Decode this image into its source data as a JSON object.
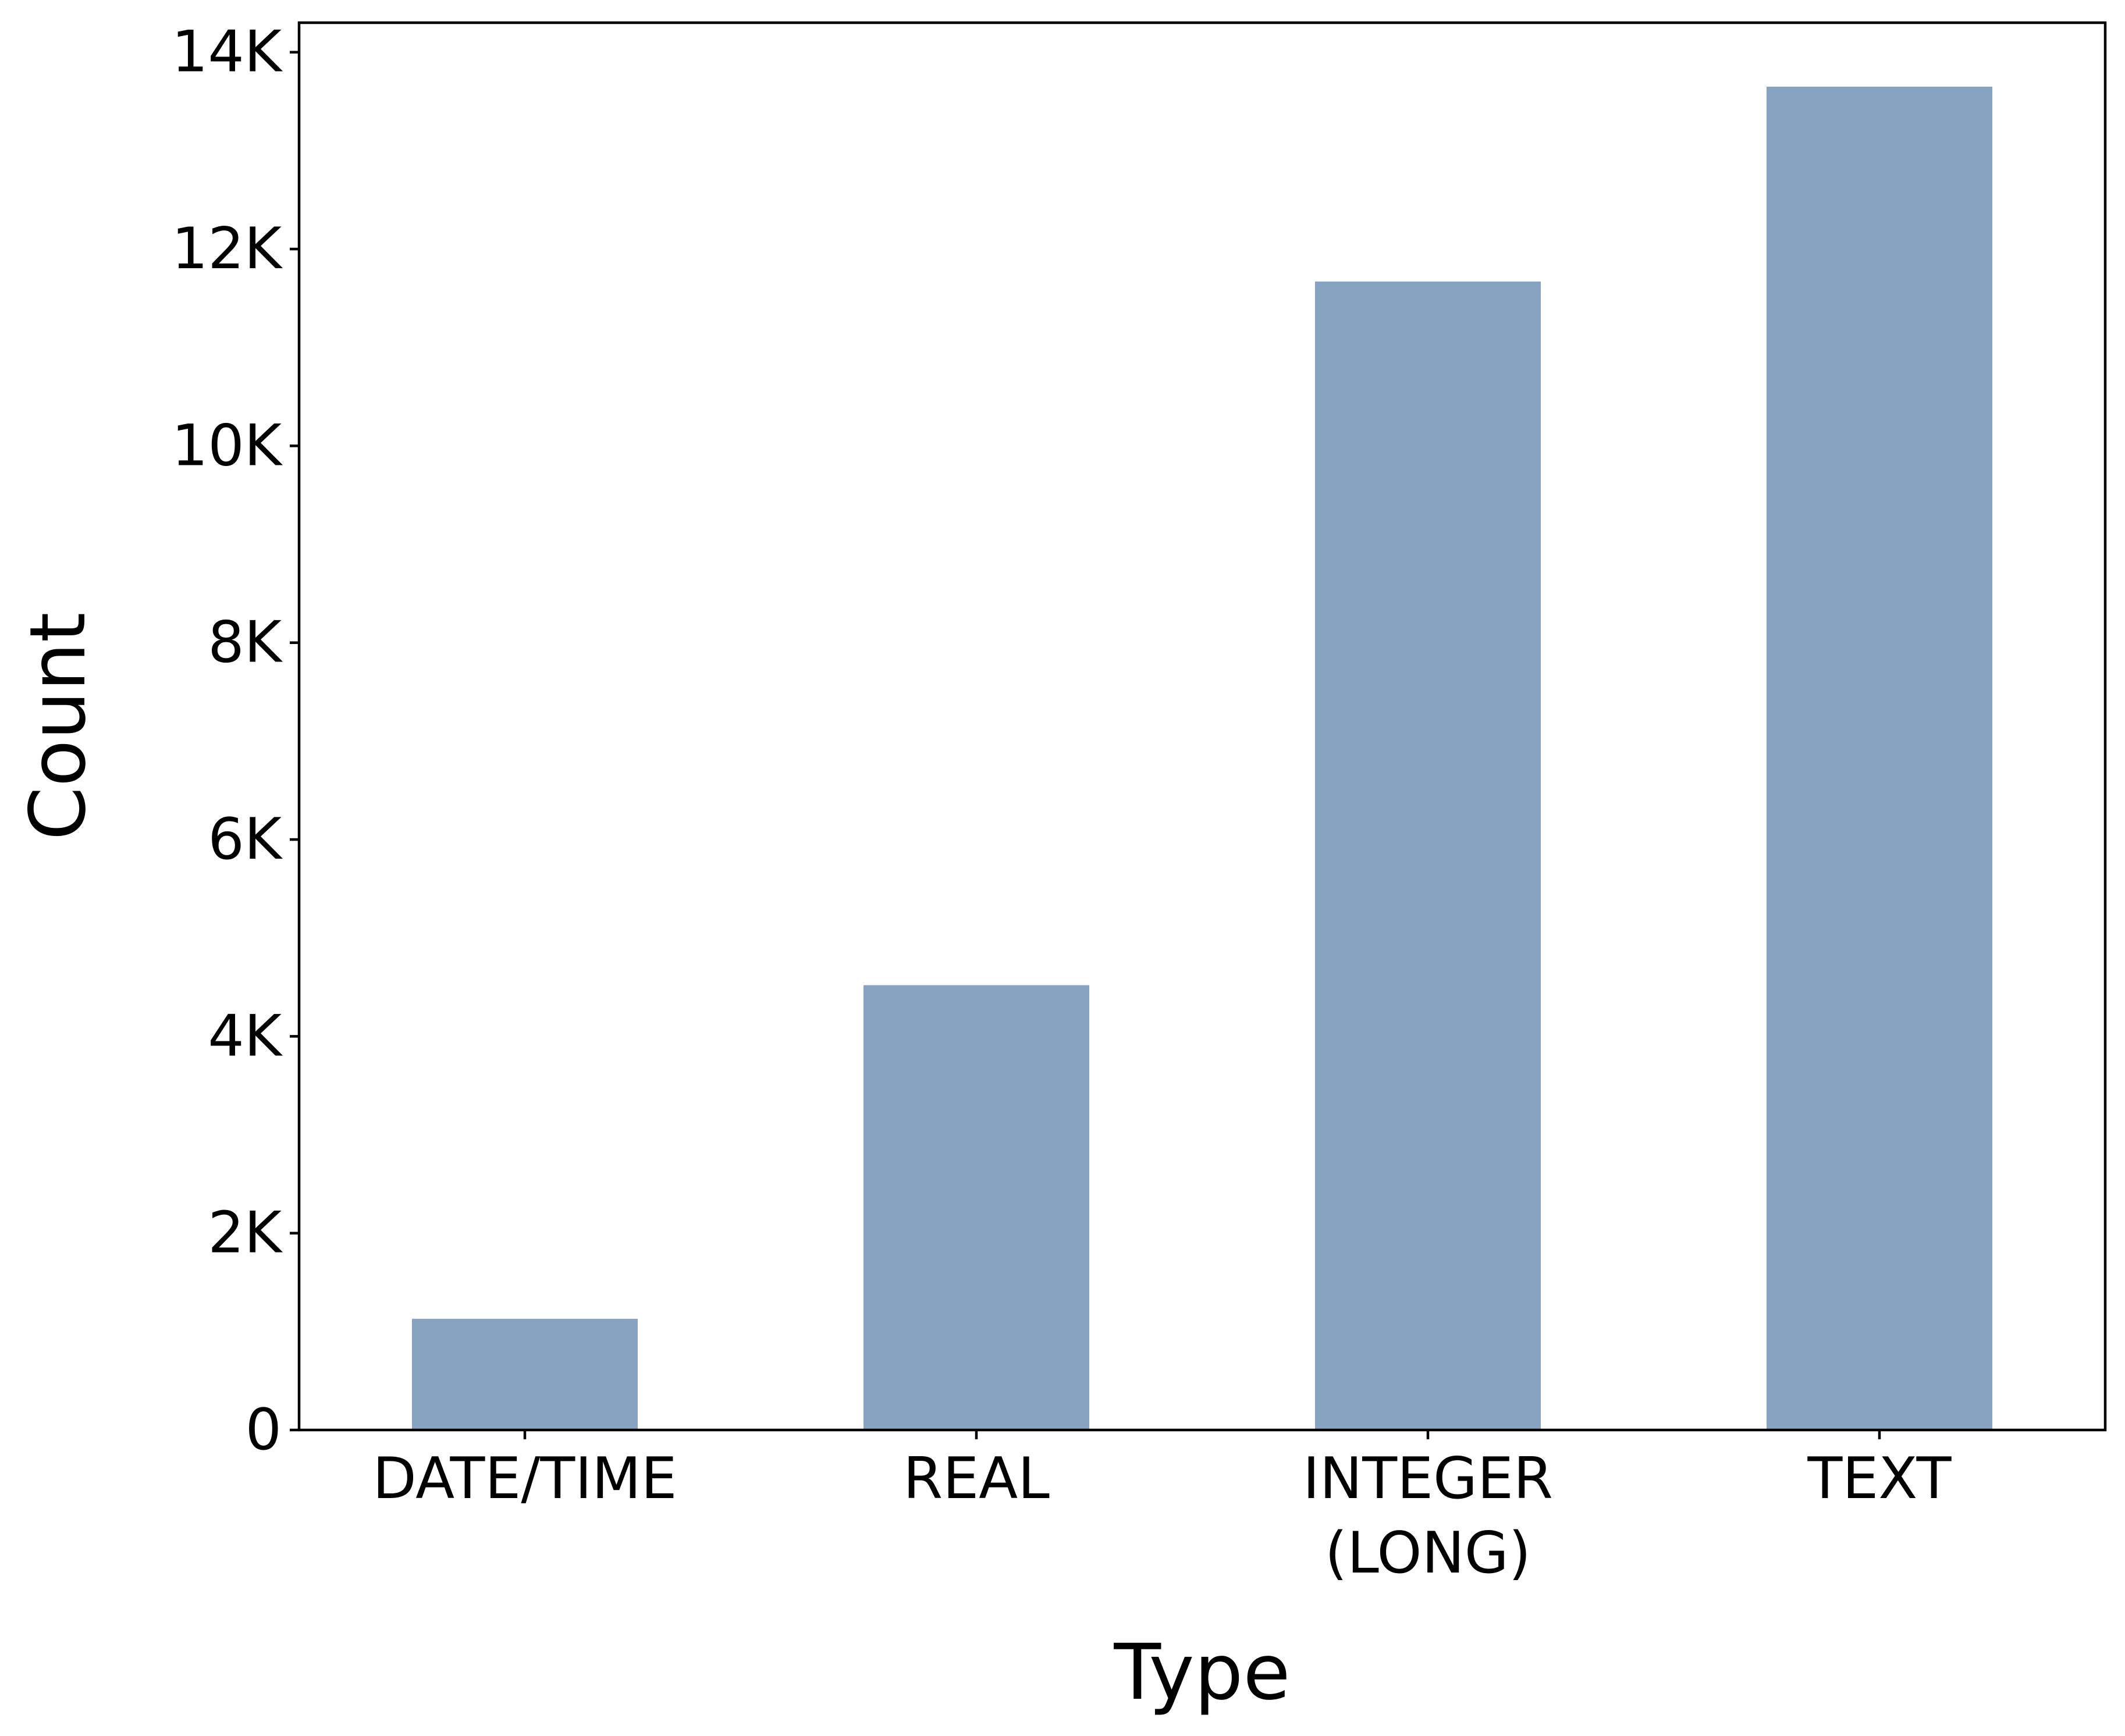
{
  "chart_data": {
    "type": "bar",
    "categories": [
      [
        "DATE/TIME"
      ],
      [
        "REAL"
      ],
      [
        "INTEGER",
        "(LONG)"
      ],
      [
        "TEXT"
      ]
    ],
    "values": [
      1130,
      4520,
      11670,
      13650
    ],
    "xlabel": "Type",
    "ylabel": "Count",
    "ylim": [
      0,
      14300
    ],
    "yticks": [
      0,
      2000,
      4000,
      6000,
      8000,
      10000,
      12000,
      14000
    ],
    "ytick_labels": [
      "0",
      "2K",
      "4K",
      "6K",
      "8K",
      "10K",
      "12K",
      "14K"
    ],
    "bar_color": "#86a4c1",
    "grid": false,
    "legend": "none"
  }
}
